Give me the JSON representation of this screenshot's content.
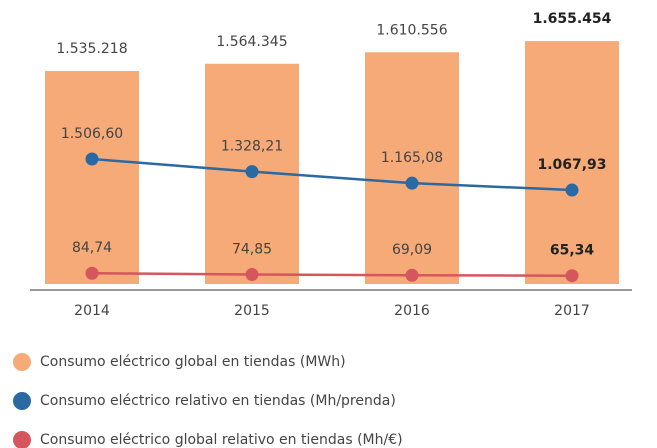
{
  "chart_data": {
    "type": "bar",
    "categories": [
      "2014",
      "2015",
      "2016",
      "2017"
    ],
    "ylim": [
      680000,
      1700000
    ],
    "series": [
      {
        "name": "Consumo eléctrico global en tiendas (MWh)",
        "type": "bar",
        "color": "#f5aa78",
        "values": [
          1535218,
          1564345,
          1610556,
          1655454
        ],
        "value_labels": [
          "1.535.218",
          "1.564.345",
          "1.610.556",
          "1.655.454"
        ]
      },
      {
        "name": "Consumo eléctrico relativo en tiendas (Mh/prenda)",
        "type": "line",
        "color": "#2b69a3",
        "ylim": [
          -260,
          3330
        ],
        "values": [
          1506.6,
          1328.21,
          1165.08,
          1067.93
        ],
        "value_labels": [
          "1.506,60",
          "1.328,21",
          "1.165,08",
          "1.067,93"
        ]
      },
      {
        "name": "Consumo eléctrico global relativo en tiendas (Mh/€)",
        "type": "line",
        "color": "#d6565e",
        "ylim": [
          0,
          2000
        ],
        "values": [
          84.74,
          74.85,
          69.09,
          65.34
        ],
        "value_labels": [
          "84,74",
          "74,85",
          "69,09",
          "65,34"
        ]
      }
    ]
  }
}
